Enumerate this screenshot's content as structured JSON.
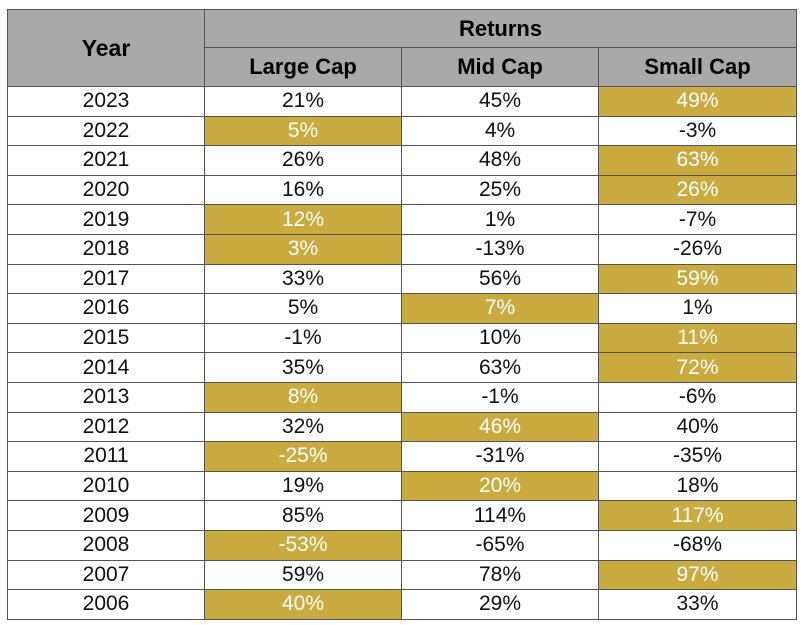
{
  "table": {
    "year_header": "Year",
    "group_header": "Returns",
    "columns": [
      "Large Cap",
      "Mid Cap",
      "Small Cap"
    ],
    "highlight_color": "#c9ab3f",
    "header_color": "#a9a9a9",
    "rows": [
      {
        "year": "2023",
        "values": [
          "21%",
          "45%",
          "49%"
        ],
        "highlight": 2
      },
      {
        "year": "2022",
        "values": [
          "5%",
          "4%",
          "-3%"
        ],
        "highlight": 0
      },
      {
        "year": "2021",
        "values": [
          "26%",
          "48%",
          "63%"
        ],
        "highlight": 2
      },
      {
        "year": "2020",
        "values": [
          "16%",
          "25%",
          "26%"
        ],
        "highlight": 2
      },
      {
        "year": "2019",
        "values": [
          "12%",
          "1%",
          "-7%"
        ],
        "highlight": 0
      },
      {
        "year": "2018",
        "values": [
          "3%",
          "-13%",
          "-26%"
        ],
        "highlight": 0
      },
      {
        "year": "2017",
        "values": [
          "33%",
          "56%",
          "59%"
        ],
        "highlight": 2
      },
      {
        "year": "2016",
        "values": [
          "5%",
          "7%",
          "1%"
        ],
        "highlight": 1
      },
      {
        "year": "2015",
        "values": [
          "-1%",
          "10%",
          "11%"
        ],
        "highlight": 2
      },
      {
        "year": "2014",
        "values": [
          "35%",
          "63%",
          "72%"
        ],
        "highlight": 2
      },
      {
        "year": "2013",
        "values": [
          "8%",
          "-1%",
          "-6%"
        ],
        "highlight": 0
      },
      {
        "year": "2012",
        "values": [
          "32%",
          "46%",
          "40%"
        ],
        "highlight": 1
      },
      {
        "year": "2011",
        "values": [
          "-25%",
          "-31%",
          "-35%"
        ],
        "highlight": 0
      },
      {
        "year": "2010",
        "values": [
          "19%",
          "20%",
          "18%"
        ],
        "highlight": 1
      },
      {
        "year": "2009",
        "values": [
          "85%",
          "114%",
          "117%"
        ],
        "highlight": 2
      },
      {
        "year": "2008",
        "values": [
          "-53%",
          "-65%",
          "-68%"
        ],
        "highlight": 0
      },
      {
        "year": "2007",
        "values": [
          "59%",
          "78%",
          "97%"
        ],
        "highlight": 2
      },
      {
        "year": "2006",
        "values": [
          "40%",
          "29%",
          "33%"
        ],
        "highlight": 0
      }
    ]
  }
}
